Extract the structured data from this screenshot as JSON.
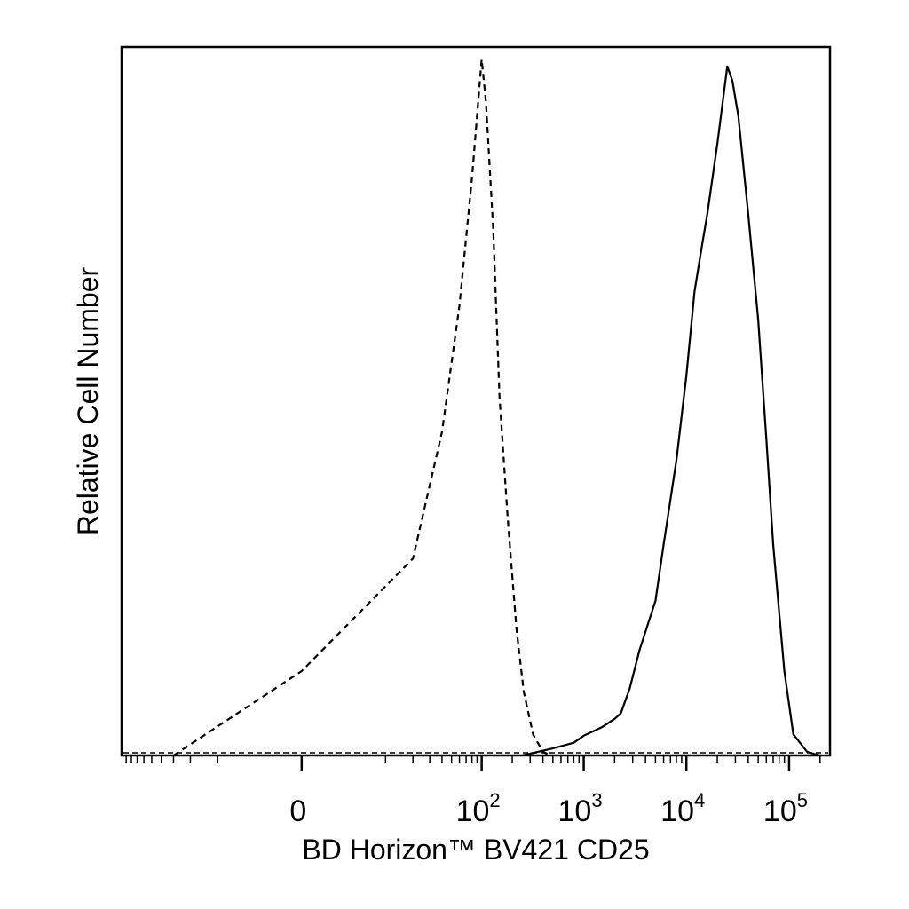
{
  "chart_data": {
    "type": "line",
    "xlabel": "BD Horizon™ BV421 CD25",
    "ylabel": "Relative Cell Number",
    "x_scale": "biexponential",
    "xlim": [
      -100,
      250000
    ],
    "ylim": [
      0,
      1
    ],
    "grid": false,
    "x_ticks": [
      {
        "value": 0,
        "base": "0",
        "exp": ""
      },
      {
        "value": 100,
        "base": "10",
        "exp": "2"
      },
      {
        "value": 1000,
        "base": "10",
        "exp": "3"
      },
      {
        "value": 10000,
        "base": "10",
        "exp": "4"
      },
      {
        "value": 100000,
        "base": "10",
        "exp": "5"
      }
    ],
    "series": [
      {
        "style": "dashed",
        "x": [
          -30,
          0,
          20,
          40,
          60,
          80,
          100,
          110,
          130,
          150,
          180,
          220,
          260,
          320,
          400,
          480
        ],
        "y": [
          0.0,
          0.12,
          0.28,
          0.46,
          0.64,
          0.82,
          0.99,
          0.93,
          0.75,
          0.51,
          0.34,
          0.18,
          0.09,
          0.03,
          0.005,
          0
        ]
      },
      {
        "style": "solid",
        "x": [
          250,
          500,
          800,
          1000,
          1500,
          2000,
          2300,
          2800,
          3500,
          5000,
          6000,
          8000,
          10000,
          12000,
          14000,
          16000,
          20000,
          25000,
          28000,
          32000,
          40000,
          50000,
          60000,
          70000,
          90000,
          110000,
          150000,
          200000
        ],
        "y": [
          0,
          0.01,
          0.018,
          0.028,
          0.04,
          0.052,
          0.06,
          0.095,
          0.15,
          0.22,
          0.3,
          0.42,
          0.54,
          0.66,
          0.72,
          0.77,
          0.87,
          0.98,
          0.96,
          0.91,
          0.77,
          0.62,
          0.45,
          0.3,
          0.12,
          0.03,
          0.005,
          0
        ]
      }
    ]
  }
}
